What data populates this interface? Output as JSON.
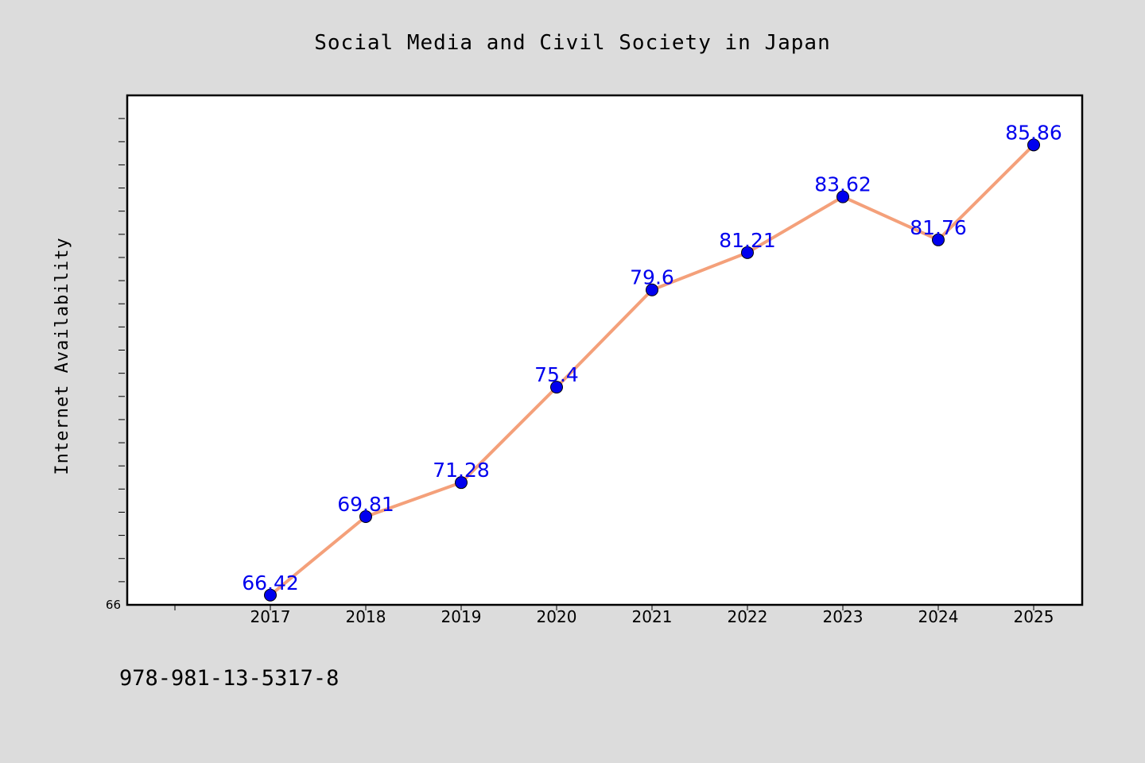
{
  "footer": {
    "isbn": "978-981-13-5317-8"
  },
  "chart_data": {
    "type": "line",
    "title": "Social Media and Civil Society in Japan",
    "xlabel": "",
    "ylabel": "Internet Availability",
    "x": [
      "2017",
      "2018",
      "2019",
      "2020",
      "2021",
      "2022",
      "2023",
      "2024",
      "2025"
    ],
    "series": [
      {
        "values": [
          66.42,
          69.81,
          71.28,
          75.4,
          79.6,
          81.21,
          83.62,
          81.76,
          85.86
        ],
        "data_labels": [
          "66.42",
          "69.81",
          "71.28",
          "75.4",
          "79.6",
          "81.21",
          "83.62",
          "81.76",
          "85.86"
        ]
      }
    ],
    "ylim": [
      66,
      88
    ],
    "yticks_labeled": [
      "66"
    ],
    "grid": false,
    "legend": "none",
    "colors": {
      "line": "#f4a07a",
      "marker": "#0000ee",
      "labels": "#0000ee",
      "plot_background": "#ffffff",
      "page_background": "#dcdcdc"
    }
  }
}
